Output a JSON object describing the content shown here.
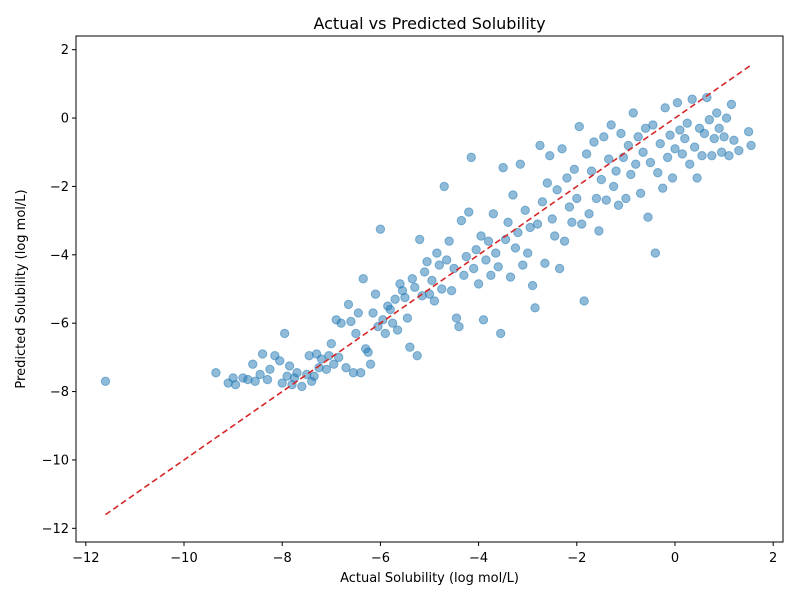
{
  "chart_data": {
    "type": "scatter",
    "title": "Actual vs Predicted Solubility",
    "xlabel": "Actual Solubility (log mol/L)",
    "ylabel": "Predicted Solubility (log mol/L)",
    "xlim": [
      -12.2,
      2.2
    ],
    "ylim": [
      -12.4,
      2.4
    ],
    "x_ticks": [
      -12,
      -10,
      -8,
      -6,
      -4,
      -2,
      0,
      2
    ],
    "y_ticks": [
      -12,
      -10,
      -8,
      -6,
      -4,
      -2,
      0,
      2
    ],
    "x_tick_labels": [
      "−12",
      "−10",
      "−8",
      "−6",
      "−4",
      "−2",
      "0",
      "2"
    ],
    "y_tick_labels": [
      "−12",
      "−10",
      "−8",
      "−6",
      "−4",
      "−2",
      "0",
      "2"
    ],
    "grid": false,
    "colors": {
      "points": "#1f77b4",
      "reference_line": "#d62728"
    },
    "reference_line": {
      "style": "dashed",
      "from": [
        -11.6,
        -11.6
      ],
      "to": [
        1.58,
        1.58
      ]
    },
    "points": [
      [
        -11.6,
        -7.7
      ],
      [
        -9.35,
        -7.45
      ],
      [
        -9.1,
        -7.75
      ],
      [
        -9.0,
        -7.6
      ],
      [
        -8.95,
        -7.8
      ],
      [
        -8.8,
        -7.6
      ],
      [
        -8.7,
        -7.65
      ],
      [
        -8.6,
        -7.2
      ],
      [
        -8.55,
        -7.7
      ],
      [
        -8.45,
        -7.5
      ],
      [
        -8.4,
        -6.9
      ],
      [
        -8.3,
        -7.65
      ],
      [
        -8.25,
        -7.35
      ],
      [
        -8.15,
        -6.95
      ],
      [
        -8.05,
        -7.1
      ],
      [
        -8.0,
        -7.75
      ],
      [
        -7.95,
        -6.3
      ],
      [
        -7.9,
        -7.55
      ],
      [
        -7.85,
        -7.25
      ],
      [
        -7.8,
        -7.8
      ],
      [
        -7.75,
        -7.6
      ],
      [
        -7.7,
        -7.45
      ],
      [
        -7.6,
        -7.85
      ],
      [
        -7.5,
        -7.5
      ],
      [
        -7.45,
        -6.95
      ],
      [
        -7.4,
        -7.7
      ],
      [
        -7.35,
        -7.55
      ],
      [
        -7.3,
        -6.9
      ],
      [
        -7.25,
        -7.3
      ],
      [
        -7.2,
        -7.05
      ],
      [
        -7.1,
        -7.35
      ],
      [
        -7.05,
        -6.95
      ],
      [
        -7.0,
        -6.6
      ],
      [
        -6.95,
        -7.2
      ],
      [
        -6.9,
        -5.9
      ],
      [
        -6.85,
        -7.0
      ],
      [
        -6.8,
        -6.0
      ],
      [
        -6.7,
        -7.3
      ],
      [
        -6.65,
        -5.45
      ],
      [
        -6.6,
        -5.95
      ],
      [
        -6.55,
        -7.45
      ],
      [
        -6.5,
        -6.3
      ],
      [
        -6.45,
        -5.7
      ],
      [
        -6.4,
        -7.45
      ],
      [
        -6.35,
        -4.7
      ],
      [
        -6.3,
        -6.75
      ],
      [
        -6.25,
        -6.85
      ],
      [
        -6.2,
        -7.2
      ],
      [
        -6.15,
        -5.7
      ],
      [
        -6.1,
        -5.15
      ],
      [
        -6.05,
        -6.1
      ],
      [
        -6.0,
        -3.25
      ],
      [
        -5.95,
        -5.9
      ],
      [
        -5.9,
        -6.3
      ],
      [
        -5.85,
        -5.5
      ],
      [
        -5.8,
        -5.6
      ],
      [
        -5.75,
        -6.0
      ],
      [
        -5.7,
        -5.3
      ],
      [
        -5.65,
        -6.2
      ],
      [
        -5.6,
        -4.85
      ],
      [
        -5.55,
        -5.05
      ],
      [
        -5.5,
        -5.25
      ],
      [
        -5.45,
        -5.85
      ],
      [
        -5.4,
        -6.7
      ],
      [
        -5.35,
        -4.7
      ],
      [
        -5.3,
        -4.95
      ],
      [
        -5.25,
        -6.95
      ],
      [
        -5.2,
        -3.55
      ],
      [
        -5.15,
        -5.2
      ],
      [
        -5.1,
        -4.5
      ],
      [
        -5.05,
        -4.2
      ],
      [
        -5.0,
        -5.15
      ],
      [
        -4.95,
        -4.75
      ],
      [
        -4.9,
        -5.35
      ],
      [
        -4.85,
        -3.95
      ],
      [
        -4.8,
        -4.3
      ],
      [
        -4.75,
        -5.0
      ],
      [
        -4.7,
        -2.0
      ],
      [
        -4.65,
        -4.15
      ],
      [
        -4.6,
        -3.6
      ],
      [
        -4.55,
        -5.05
      ],
      [
        -4.5,
        -4.4
      ],
      [
        -4.45,
        -5.85
      ],
      [
        -4.4,
        -6.1
      ],
      [
        -4.35,
        -3.0
      ],
      [
        -4.3,
        -4.6
      ],
      [
        -4.25,
        -4.05
      ],
      [
        -4.2,
        -2.75
      ],
      [
        -4.15,
        -1.15
      ],
      [
        -4.1,
        -4.4
      ],
      [
        -4.05,
        -3.85
      ],
      [
        -4.0,
        -4.85
      ],
      [
        -3.95,
        -3.45
      ],
      [
        -3.9,
        -5.9
      ],
      [
        -3.85,
        -4.15
      ],
      [
        -3.8,
        -3.6
      ],
      [
        -3.75,
        -4.6
      ],
      [
        -3.7,
        -2.8
      ],
      [
        -3.65,
        -3.95
      ],
      [
        -3.6,
        -4.35
      ],
      [
        -3.55,
        -6.3
      ],
      [
        -3.5,
        -1.45
      ],
      [
        -3.45,
        -3.55
      ],
      [
        -3.4,
        -3.05
      ],
      [
        -3.35,
        -4.65
      ],
      [
        -3.3,
        -2.25
      ],
      [
        -3.25,
        -3.8
      ],
      [
        -3.2,
        -3.35
      ],
      [
        -3.15,
        -1.35
      ],
      [
        -3.1,
        -4.3
      ],
      [
        -3.05,
        -2.7
      ],
      [
        -3.0,
        -3.95
      ],
      [
        -2.95,
        -3.2
      ],
      [
        -2.9,
        -4.9
      ],
      [
        -2.85,
        -5.55
      ],
      [
        -2.8,
        -3.1
      ],
      [
        -2.75,
        -0.8
      ],
      [
        -2.7,
        -2.45
      ],
      [
        -2.65,
        -4.25
      ],
      [
        -2.6,
        -1.9
      ],
      [
        -2.55,
        -1.1
      ],
      [
        -2.5,
        -2.95
      ],
      [
        -2.45,
        -3.45
      ],
      [
        -2.4,
        -2.1
      ],
      [
        -2.35,
        -4.4
      ],
      [
        -2.3,
        -0.9
      ],
      [
        -2.25,
        -3.6
      ],
      [
        -2.2,
        -1.75
      ],
      [
        -2.15,
        -2.6
      ],
      [
        -2.1,
        -3.05
      ],
      [
        -2.05,
        -1.5
      ],
      [
        -2.0,
        -2.35
      ],
      [
        -1.95,
        -0.25
      ],
      [
        -1.9,
        -3.1
      ],
      [
        -1.85,
        -5.35
      ],
      [
        -1.8,
        -1.05
      ],
      [
        -1.75,
        -2.8
      ],
      [
        -1.7,
        -1.55
      ],
      [
        -1.65,
        -0.7
      ],
      [
        -1.6,
        -2.35
      ],
      [
        -1.55,
        -3.3
      ],
      [
        -1.5,
        -1.8
      ],
      [
        -1.45,
        -0.55
      ],
      [
        -1.4,
        -2.4
      ],
      [
        -1.35,
        -1.2
      ],
      [
        -1.3,
        -0.2
      ],
      [
        -1.25,
        -2.0
      ],
      [
        -1.2,
        -1.55
      ],
      [
        -1.15,
        -2.55
      ],
      [
        -1.1,
        -0.45
      ],
      [
        -1.05,
        -1.15
      ],
      [
        -1.0,
        -2.35
      ],
      [
        -0.95,
        -0.8
      ],
      [
        -0.9,
        -1.65
      ],
      [
        -0.85,
        0.15
      ],
      [
        -0.8,
        -1.35
      ],
      [
        -0.75,
        -0.55
      ],
      [
        -0.7,
        -2.2
      ],
      [
        -0.65,
        -1.0
      ],
      [
        -0.6,
        -0.3
      ],
      [
        -0.55,
        -2.9
      ],
      [
        -0.5,
        -1.3
      ],
      [
        -0.45,
        -0.2
      ],
      [
        -0.4,
        -3.95
      ],
      [
        -0.35,
        -1.6
      ],
      [
        -0.3,
        -0.75
      ],
      [
        -0.25,
        -2.05
      ],
      [
        -0.2,
        0.3
      ],
      [
        -0.15,
        -1.15
      ],
      [
        -0.1,
        -0.5
      ],
      [
        -0.05,
        -1.75
      ],
      [
        0.0,
        -0.9
      ],
      [
        0.05,
        0.45
      ],
      [
        0.1,
        -0.35
      ],
      [
        0.15,
        -1.05
      ],
      [
        0.2,
        -0.6
      ],
      [
        0.25,
        -0.15
      ],
      [
        0.3,
        -1.35
      ],
      [
        0.35,
        0.55
      ],
      [
        0.4,
        -0.85
      ],
      [
        0.45,
        -1.75
      ],
      [
        0.5,
        -0.3
      ],
      [
        0.55,
        -1.1
      ],
      [
        0.6,
        -0.45
      ],
      [
        0.65,
        0.6
      ],
      [
        0.7,
        -0.05
      ],
      [
        0.75,
        -1.1
      ],
      [
        0.8,
        -0.6
      ],
      [
        0.85,
        0.15
      ],
      [
        0.9,
        -0.3
      ],
      [
        0.95,
        -1.0
      ],
      [
        1.0,
        -0.55
      ],
      [
        1.05,
        0.0
      ],
      [
        1.1,
        -1.1
      ],
      [
        1.15,
        0.4
      ],
      [
        1.2,
        -0.65
      ],
      [
        1.3,
        -0.95
      ],
      [
        1.5,
        -0.4
      ],
      [
        1.55,
        -0.8
      ]
    ]
  }
}
